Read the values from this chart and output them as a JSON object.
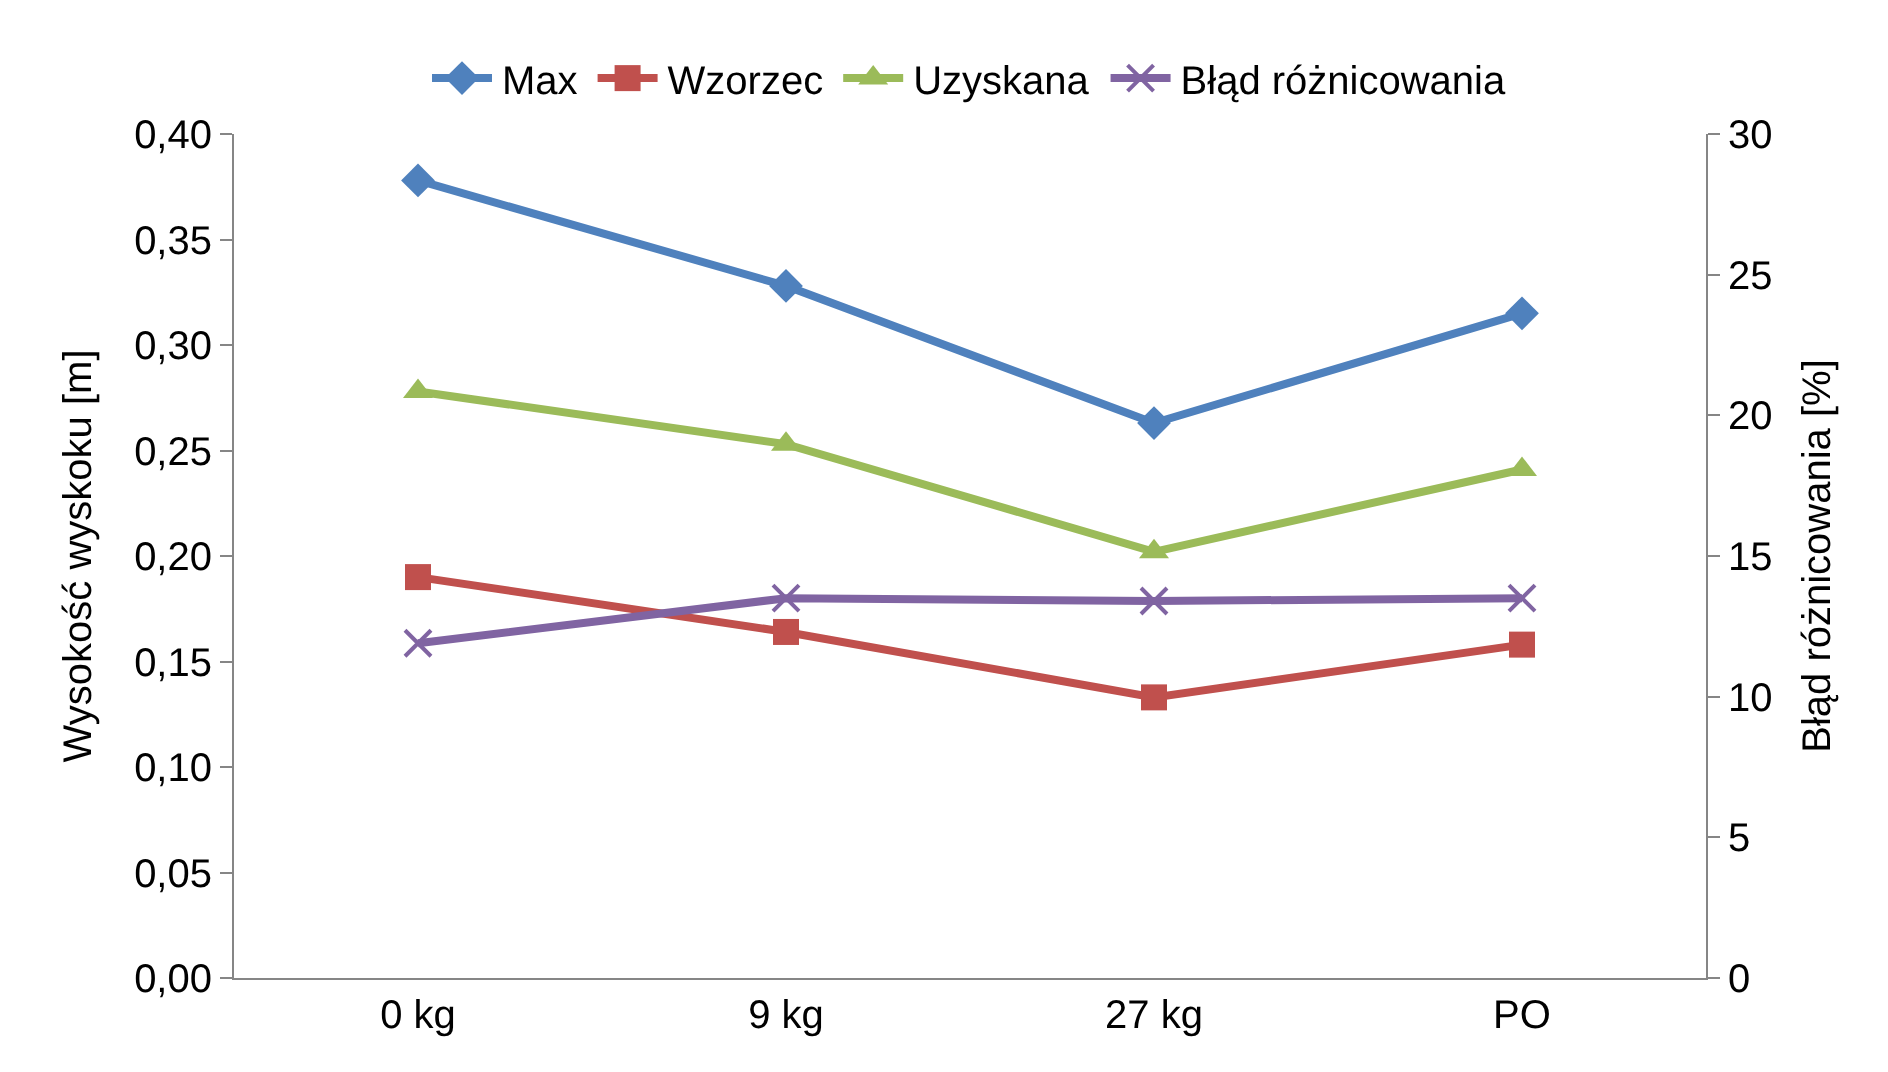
{
  "chart_data": {
    "type": "line",
    "ylabel": "Wysokość wyskoku [m]",
    "y2label": "Błąd różnicowania [%]",
    "categories": [
      "0 kg",
      "9 kg",
      "27 kg",
      "PO"
    ],
    "series": [
      {
        "name": "Max",
        "color": "#4f81bd",
        "marker": "diamond",
        "values": [
          0.378,
          0.328,
          0.263,
          0.315
        ]
      },
      {
        "name": "Wzorzec",
        "color": "#c0504d",
        "marker": "square",
        "values": [
          0.19,
          0.164,
          0.133,
          0.158
        ]
      },
      {
        "name": "Uzyskana",
        "color": "#9bbb59",
        "marker": "triangle",
        "values": [
          0.278,
          0.253,
          0.202,
          0.241
        ]
      },
      {
        "name": "Błąd różnicowania",
        "color": "#8064a2",
        "marker": "cross",
        "axis": "y2",
        "values": [
          11.9,
          13.5,
          13.4,
          13.5
        ]
      }
    ],
    "ylim": [
      0,
      0.4
    ],
    "yticks": [
      {
        "value": 0,
        "label": "0,00"
      },
      {
        "value": 0.05,
        "label": "0,05"
      },
      {
        "value": 0.1,
        "label": "0,10"
      },
      {
        "value": 0.15,
        "label": "0,15"
      },
      {
        "value": 0.2,
        "label": "0,20"
      },
      {
        "value": 0.25,
        "label": "0,25"
      },
      {
        "value": 0.3,
        "label": "0,30"
      },
      {
        "value": 0.35,
        "label": "0,35"
      },
      {
        "value": 0.4,
        "label": "0,40"
      }
    ],
    "y2lim": [
      0,
      30
    ],
    "y2ticks": [
      0,
      5,
      10,
      15,
      20,
      25,
      30
    ],
    "legend": "top",
    "line_style": "solid"
  }
}
